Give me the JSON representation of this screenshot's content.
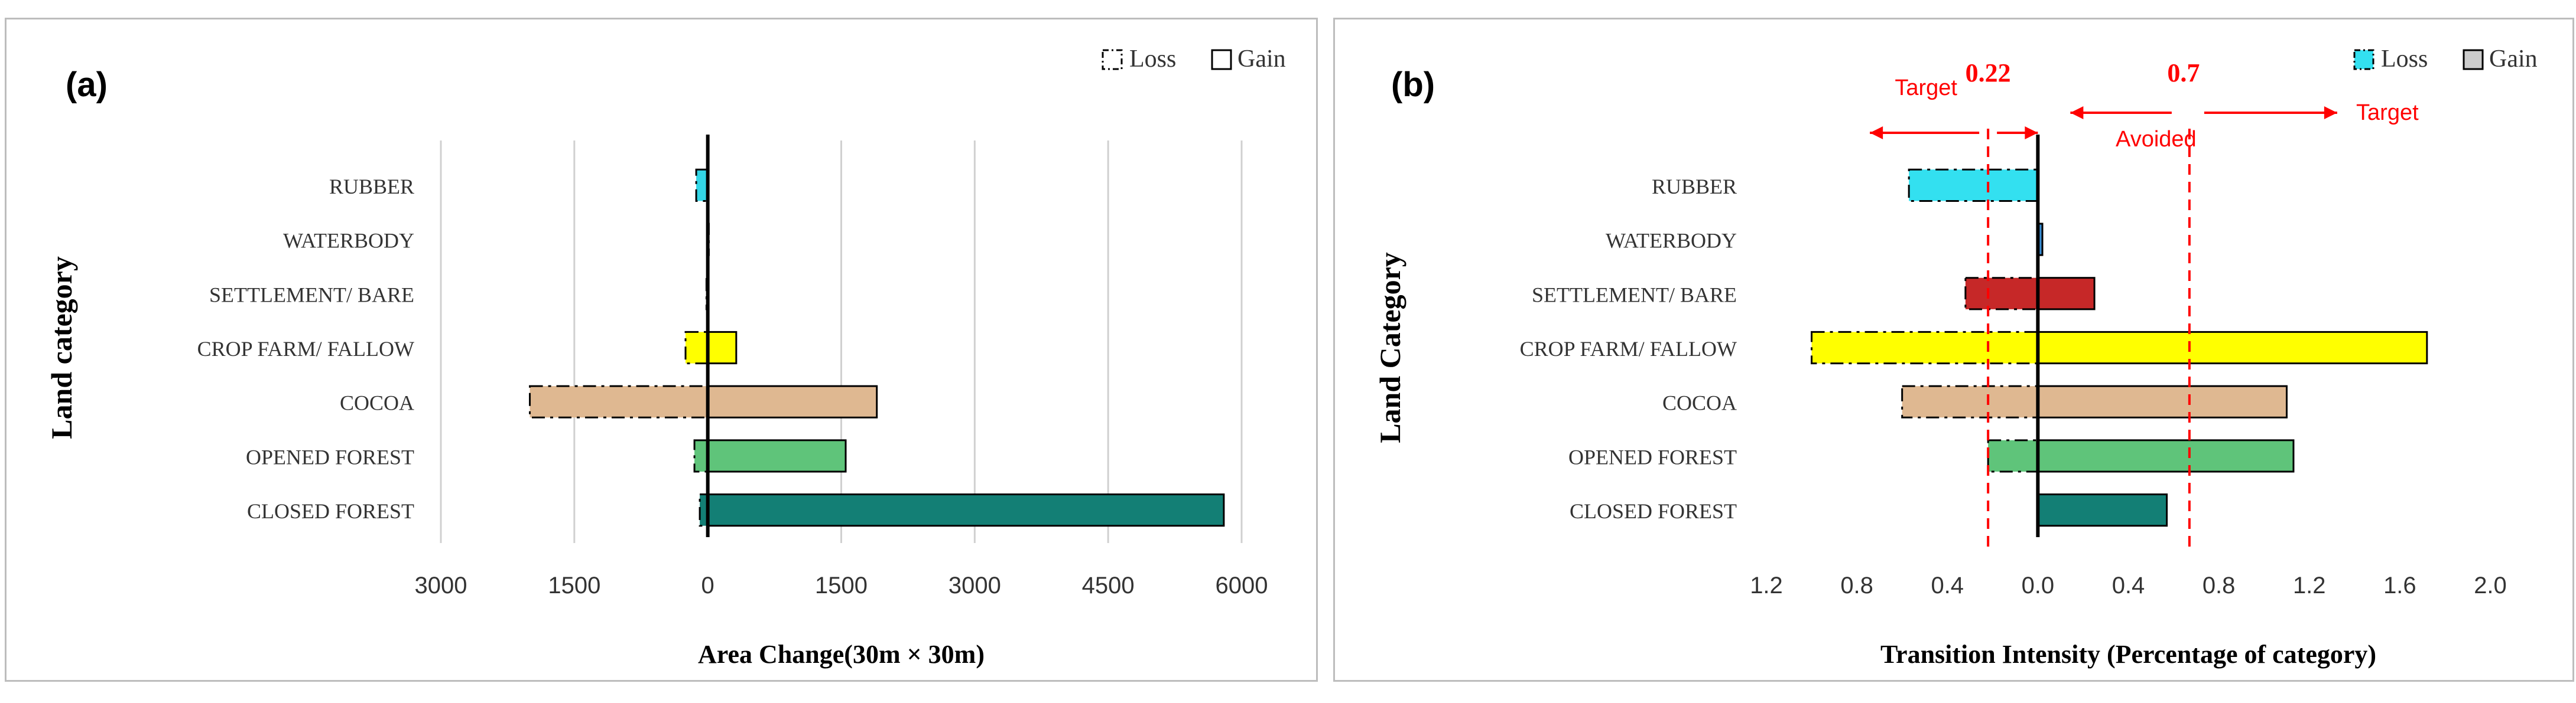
{
  "charts": [
    {
      "type": "bar",
      "orientation": "horizontal",
      "panel_label": "(a)",
      "xlabel": "Area Change(30m × 30m)",
      "ylabel": "Land category",
      "categories": [
        "RUBBER",
        "WATERBODY",
        "SETTLEMENT/ BARE",
        "CROP FARM/ FALLOW",
        "COCOA",
        "OPENED FOREST",
        "CLOSED FOREST"
      ],
      "x_tick_labels": [
        "3000",
        "1500",
        "0",
        "1500",
        "3000",
        "4500",
        "6000"
      ],
      "xlim": [
        -3000,
        6000
      ],
      "xticks": [
        -3000,
        -1500,
        0,
        1500,
        3000,
        4500,
        6000
      ],
      "grid": true,
      "legend_position": "top-right",
      "series": [
        {
          "name": "Loss",
          "style": "dash-dot",
          "values": [
            -130,
            -8,
            -15,
            -250,
            -2000,
            -150,
            -90
          ]
        },
        {
          "name": "Gain",
          "style": "solid",
          "values": [
            0,
            0,
            0,
            320,
            1900,
            1550,
            5800
          ]
        }
      ],
      "colors": [
        "#33d6e6",
        "#3a8fd6",
        "#c0392b",
        "#ffff00",
        "#dfb891",
        "#5fc47a",
        "#137f75"
      ]
    },
    {
      "type": "bar",
      "orientation": "horizontal",
      "panel_label": "(b)",
      "xlabel": "Transition Intensity (Percentage of category)",
      "ylabel": "Land Category",
      "categories": [
        "RUBBER",
        "WATERBODY",
        "SETTLEMENT/ BARE",
        "CROP FARM/ FALLOW",
        "COCOA",
        "OPENED FOREST",
        "CLOSED FOREST"
      ],
      "x_tick_labels": [
        "1.2",
        "0.8",
        "0.4",
        "0.0",
        "0.4",
        "0.8",
        "1.2",
        "1.6",
        "2.0"
      ],
      "xlim": [
        -1.2,
        2.0
      ],
      "xticks": [
        -1.2,
        -0.8,
        -0.4,
        0.0,
        0.4,
        0.8,
        1.2,
        1.6,
        2.0
      ],
      "grid": false,
      "legend_position": "top-right",
      "series": [
        {
          "name": "Loss",
          "style": "dash-dot",
          "values": [
            -0.57,
            0,
            -0.32,
            -1.0,
            -0.6,
            -0.22,
            0
          ]
        },
        {
          "name": "Gain",
          "style": "solid",
          "values": [
            0,
            0.02,
            0.25,
            1.72,
            1.1,
            1.13,
            0.57
          ]
        }
      ],
      "colors": [
        "#33e0f0",
        "#3a8fd6",
        "#c62828",
        "#ffff00",
        "#dfb891",
        "#5fc47a",
        "#137f75"
      ],
      "reference_lines": [
        {
          "value": -0.22,
          "label": "0.22"
        },
        {
          "value": 0.67,
          "label": "0.7"
        }
      ],
      "annotations": {
        "target_left": "Target",
        "avoided": "Avoided",
        "target_right": "Target"
      }
    }
  ]
}
